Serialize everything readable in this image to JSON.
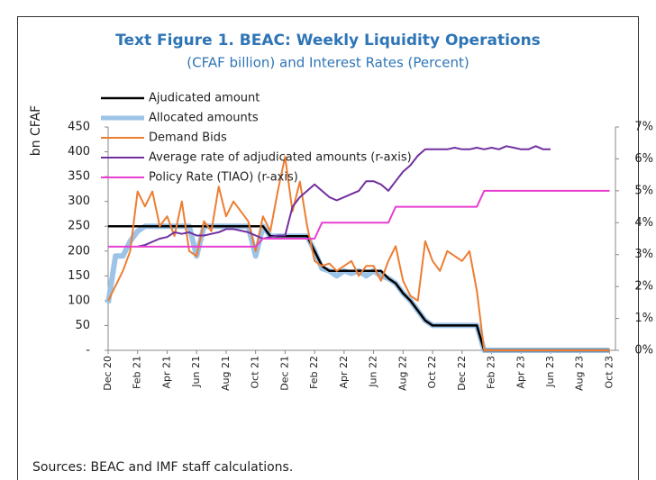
{
  "chart_data": {
    "type": "line",
    "title": "Text Figure 1. BEAC: Weekly Liquidity Operations",
    "subtitle": "(CFAF billion) and Interest Rates (Percent)",
    "ylabel": "bn CFAF",
    "source": "Sources: BEAC and IMF staff calculations.",
    "x": [
      0,
      0.5,
      1,
      1.5,
      2,
      2.5,
      3,
      3.5,
      4,
      4.5,
      5,
      5.5,
      6,
      6.5,
      7,
      7.5,
      8,
      8.5,
      9,
      9.5,
      10,
      10.5,
      11,
      11.5,
      12,
      12.5,
      13,
      13.5,
      14,
      14.5,
      15,
      15.5,
      16,
      16.5,
      17,
      17.5,
      18,
      18.5,
      19,
      19.5,
      20,
      20.5,
      21,
      21.5,
      22,
      22.5,
      23,
      23.5,
      24,
      24.5,
      25,
      25.5,
      26,
      26.5,
      27,
      27.5,
      28,
      28.5,
      29,
      29.5,
      30,
      30.5,
      31,
      31.5,
      32,
      32.5,
      33,
      33.5,
      34
    ],
    "xlim": [
      0,
      34.4
    ],
    "xticks": [
      {
        "value": 0,
        "label": "Dec 20"
      },
      {
        "value": 2,
        "label": "Feb 21"
      },
      {
        "value": 4,
        "label": "Apr 21"
      },
      {
        "value": 6,
        "label": "Jun 21"
      },
      {
        "value": 8,
        "label": "Aug 21"
      },
      {
        "value": 10,
        "label": "Oct 21"
      },
      {
        "value": 12,
        "label": "Dec 21"
      },
      {
        "value": 14,
        "label": "Feb 22"
      },
      {
        "value": 16,
        "label": "Apr 22"
      },
      {
        "value": 18,
        "label": "Jun 22"
      },
      {
        "value": 20,
        "label": "Aug 22"
      },
      {
        "value": 22,
        "label": "Oct 22"
      },
      {
        "value": 24,
        "label": "Dec 22"
      },
      {
        "value": 26,
        "label": "Feb 23"
      },
      {
        "value": 28,
        "label": "Apr 23"
      },
      {
        "value": 30,
        "label": "Jun 23"
      },
      {
        "value": 32,
        "label": "Aug 23"
      },
      {
        "value": 34,
        "label": "Oct 23"
      }
    ],
    "ylim": [
      0,
      450
    ],
    "yticks": [
      {
        "value": 0,
        "label": "-"
      },
      50,
      100,
      150,
      200,
      250,
      300,
      350,
      400,
      450
    ],
    "y2lim": [
      0,
      7
    ],
    "y2ticks": [
      {
        "value": 0,
        "label": "0%"
      },
      {
        "value": 1,
        "label": "1%"
      },
      {
        "value": 2,
        "label": "2%"
      },
      {
        "value": 3,
        "label": "3%"
      },
      {
        "value": 4,
        "label": "4%"
      },
      {
        "value": 5,
        "label": "5%"
      },
      {
        "value": 6,
        "label": "6%"
      },
      {
        "value": 7,
        "label": "7%"
      }
    ],
    "legend": "top-left",
    "series": [
      {
        "name": "Ajudicated amount",
        "color": "#000000",
        "values": [
          250,
          250,
          250,
          250,
          250,
          250,
          250,
          250,
          250,
          250,
          250,
          250,
          250,
          250,
          250,
          250,
          250,
          250,
          250,
          250,
          250,
          250,
          230,
          230,
          230,
          230,
          230,
          230,
          200,
          170,
          160,
          160,
          160,
          160,
          160,
          160,
          160,
          160,
          145,
          135,
          115,
          100,
          80,
          60,
          50,
          50,
          50,
          50,
          50,
          50,
          50,
          0,
          0,
          0,
          0,
          0,
          0,
          0,
          0,
          0,
          0,
          0,
          0,
          0,
          0,
          0,
          0,
          0,
          0
        ]
      },
      {
        "name": "Allocated amounts",
        "color": "#9dc3e6",
        "values": [
          95,
          190,
          190,
          220,
          240,
          250,
          250,
          250,
          250,
          250,
          250,
          250,
          190,
          250,
          250,
          250,
          250,
          250,
          250,
          250,
          190,
          250,
          230,
          230,
          230,
          230,
          230,
          230,
          200,
          165,
          160,
          150,
          160,
          155,
          160,
          150,
          160,
          150,
          145,
          135,
          115,
          100,
          80,
          60,
          50,
          50,
          50,
          50,
          50,
          50,
          50,
          0,
          0,
          0,
          0,
          0,
          0,
          0,
          0,
          0,
          0,
          0,
          0,
          0,
          0,
          0,
          0,
          0,
          0
        ]
      },
      {
        "name": "Demand Bids",
        "color": "#ed7d31",
        "values": [
          100,
          130,
          160,
          200,
          320,
          290,
          320,
          250,
          270,
          230,
          300,
          200,
          190,
          260,
          240,
          330,
          270,
          300,
          280,
          260,
          200,
          270,
          240,
          320,
          390,
          280,
          340,
          250,
          180,
          170,
          175,
          160,
          170,
          180,
          150,
          170,
          170,
          140,
          180,
          210,
          140,
          110,
          100,
          220,
          180,
          160,
          200,
          190,
          180,
          200,
          120,
          0,
          0,
          0,
          0,
          0,
          0,
          0,
          0,
          0,
          0,
          0,
          0,
          0,
          0,
          0,
          0,
          0,
          0
        ]
      },
      {
        "name": "Average rate of adjudicated amounts (r-axis)",
        "color": "#7030a0",
        "axis": "y2",
        "values": [
          null,
          null,
          null,
          null,
          3.25,
          3.3,
          3.4,
          3.5,
          3.55,
          3.7,
          3.65,
          3.7,
          3.6,
          3.6,
          3.65,
          3.7,
          3.8,
          3.8,
          3.75,
          3.7,
          3.6,
          3.5,
          3.55,
          3.6,
          3.6,
          4.5,
          4.8,
          5.0,
          5.2,
          5.0,
          4.8,
          4.7,
          4.8,
          4.9,
          5.0,
          5.3,
          5.3,
          5.2,
          5.0,
          5.3,
          5.6,
          5.8,
          6.1,
          6.3,
          6.3,
          6.3,
          6.3,
          6.35,
          6.3,
          6.3,
          6.35,
          6.3,
          6.35,
          6.3,
          6.4,
          6.35,
          6.3,
          6.3,
          6.4,
          6.3,
          6.3,
          null,
          null,
          null,
          null,
          null,
          null,
          null,
          null
        ]
      },
      {
        "name": "Policy Rate (TIAO) (r-axis)",
        "color": "#e83fd0",
        "axis": "y2",
        "values": [
          3.25,
          3.25,
          3.25,
          3.25,
          3.25,
          3.25,
          3.25,
          3.25,
          3.25,
          3.25,
          3.25,
          3.25,
          3.25,
          3.25,
          3.25,
          3.25,
          3.25,
          3.25,
          3.25,
          3.25,
          3.25,
          3.5,
          3.5,
          3.5,
          3.5,
          3.5,
          3.5,
          3.5,
          3.5,
          4.0,
          4.0,
          4.0,
          4.0,
          4.0,
          4.0,
          4.0,
          4.0,
          4.0,
          4.0,
          4.5,
          4.5,
          4.5,
          4.5,
          4.5,
          4.5,
          4.5,
          4.5,
          4.5,
          4.5,
          4.5,
          4.5,
          5.0,
          5.0,
          5.0,
          5.0,
          5.0,
          5.0,
          5.0,
          5.0,
          5.0,
          5.0,
          5.0,
          5.0,
          5.0,
          5.0,
          5.0,
          5.0,
          5.0,
          5.0
        ]
      }
    ]
  }
}
